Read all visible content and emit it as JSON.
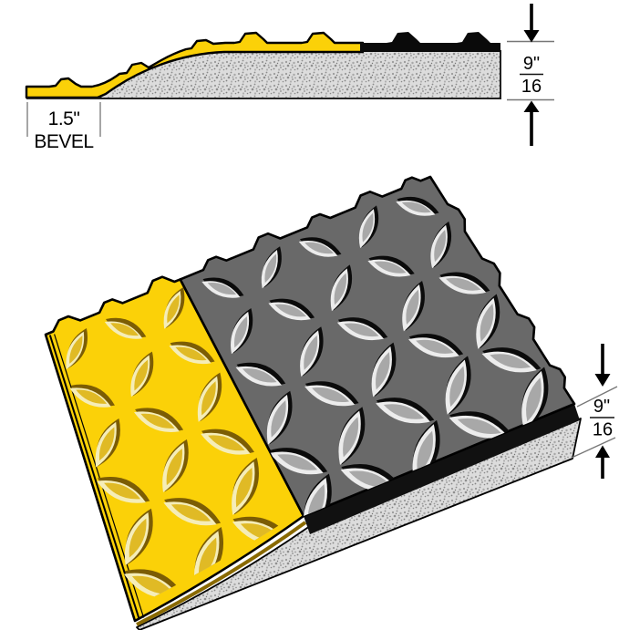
{
  "diagram": {
    "name": "beveled-anti-fatigue-mat-dimension-diagram",
    "profile_view": {
      "bevel_width_label": "1.5\"",
      "bevel_label": "BEVEL",
      "thickness_fraction": {
        "numerator": "9\"",
        "denominator": "16"
      }
    },
    "perspective_view": {
      "thickness_fraction": {
        "numerator": "9\"",
        "denominator": "16"
      }
    },
    "colors": {
      "mat_yellow": "#FBD108",
      "lens_yellow_shadow": "#7C5D04",
      "lens_yellow_highlight": "#F5EDB8",
      "lens_yellow_mid": "#E0BA25",
      "mat_dark": "#696969",
      "lens_dark_shadow": "#0B0B0B",
      "lens_dark_highlight": "#ECECEC",
      "lens_dark_mid": "#A8A8A8",
      "foam_base": "#DCDCDC",
      "foam_speckle": "#8F8F8F",
      "edge_gold": "#8A6A00",
      "black_layer": "#0A0A0A",
      "outline": "#000000",
      "dimension_line": "#777777",
      "text": "#000000"
    }
  }
}
